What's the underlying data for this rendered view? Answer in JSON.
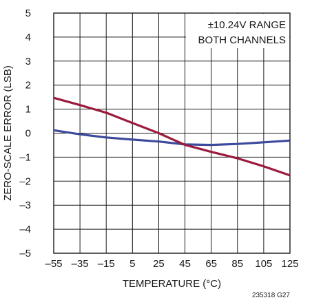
{
  "chart_data": {
    "type": "line",
    "title": "",
    "xlabel": "TEMPERATURE (°C)",
    "ylabel": "ZERO-SCALE ERROR (LSB)",
    "xlim": [
      -55,
      125
    ],
    "ylim": [
      -5,
      5
    ],
    "x_ticks": [
      -55,
      -35,
      -15,
      5,
      25,
      45,
      65,
      85,
      105,
      125
    ],
    "y_ticks": [
      -5,
      -4,
      -3,
      -2,
      -1,
      0,
      1,
      2,
      3,
      4,
      5
    ],
    "x_tick_labels": [
      "–55",
      "–35",
      "–15",
      "5",
      "25",
      "45",
      "65",
      "85",
      "105",
      "125"
    ],
    "y_tick_labels": [
      "–5",
      "–4",
      "–3",
      "–2",
      "–1",
      "0",
      "1",
      "2",
      "3",
      "4",
      "5"
    ],
    "grid": true,
    "annotations": [
      "±10.24V RANGE",
      "BOTH CHANNELS"
    ],
    "figure_code": "235318 G27",
    "series": [
      {
        "color": "#3c4a9c",
        "x": [
          -55,
          -35,
          -15,
          5,
          25,
          45,
          65,
          85,
          105,
          125
        ],
        "values": [
          0.12,
          -0.05,
          -0.18,
          -0.27,
          -0.35,
          -0.47,
          -0.49,
          -0.45,
          -0.38,
          -0.31
        ]
      },
      {
        "color": "#9b1b3c",
        "x": [
          -55,
          -35,
          -15,
          5,
          25,
          45,
          65,
          85,
          105,
          125
        ],
        "values": [
          1.47,
          1.17,
          0.85,
          0.42,
          0.0,
          -0.49,
          -0.78,
          -1.05,
          -1.38,
          -1.76
        ]
      }
    ]
  }
}
